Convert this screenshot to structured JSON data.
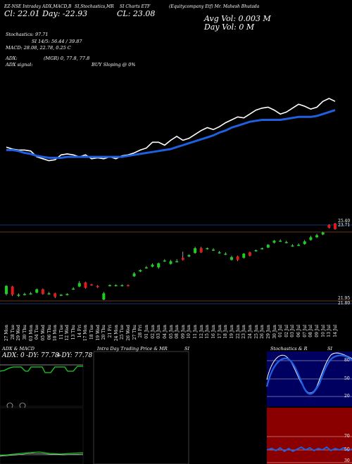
{
  "header": {
    "line1_left": "EZ-NSE",
    "line1_a": "Intraday AD",
    "line1_b": "X,MACD,B",
    "line1_c": "SI,Stochastics,MR",
    "line1_d": "SI Charts ETF",
    "line1_e": "(Equitycompany Etf) Mr. Mahesh Bhutada ",
    "line2_a": "Cl: 22.01 Day: -22.93",
    "line2_b": "CL: 23.08",
    "avg_vol": "Avg Vol: 0.003 M",
    "day_vol": "Day Vol: 0   M",
    "stoch": "Stochastics: 97.71",
    "si": "SI 14/5: 56.44   / 39.87",
    "macd": "MACD: 28.08, 22.78, 0.25 C",
    "adx": "ADX:",
    "adx_mgr": "(MGR) 0, 77.8, 77.8",
    "adx_signal": "ADX  signal:",
    "buy_signal": "BUY Sloping @ 0%"
  },
  "price_axis": {
    "top_label": "25.40",
    "top_label2": "23.71",
    "bottom_label": "21.95",
    "bottom_label2": "21.80"
  },
  "dates": [
    "27 Mon",
    "28 Tue",
    "29 Wed",
    "30 Thu",
    "03 Mon",
    "04 Tue",
    "05 Wed",
    "06 Thu",
    "10 Mon",
    "11 Tue",
    "12 Wed",
    "13 Thu",
    "14 Fri",
    "17 Mon",
    "18 Tue",
    "19 Wed",
    "20 Thu",
    "21 Fri",
    "24 Mon",
    "25 Tue",
    "26 Wed",
    "27 Thu",
    "28 Fri",
    "01 Jun",
    "02 Jun",
    "03 Jun",
    "04 Jun",
    "05 Jun",
    "08 Jun",
    "09 Jun",
    "10 Jun",
    "11 Jun",
    "12 Jun",
    "15 Jun",
    "16 Jun",
    "17 Jun",
    "18 Jun",
    "19 Jun",
    "22 Jun",
    "23 Jun",
    "24 Jun",
    "25 Jun",
    "26 Jun",
    "29 Jun",
    "30 Jun",
    "01 Jul",
    "02 Jul",
    "03 Jul",
    "06 Jul",
    "07 Jul",
    "08 Jul",
    "09 Jul",
    "10 Jul",
    "13 Jul",
    "14 Jul"
  ],
  "panels": {
    "adx_title": "ADX  & MACD",
    "adx_readout_a": "ADX: 0",
    "adx_readout_b": "-DY: 77.78",
    "adx_readout_c": "+DY: 77.78",
    "intraday_title": "Intra  Day Trading Price  & MR",
    "intraday_si": "SI",
    "stoch_title": "Stochastics & R",
    "stoch_si": "SI",
    "stoch_levels": [
      "80",
      "50",
      "20"
    ],
    "rsi_levels": [
      "70",
      "50",
      "30"
    ]
  },
  "colors": {
    "up": "#16d21e",
    "down": "#e01a1a",
    "ma": "#1f5fe0",
    "stoch_bg": "#000060",
    "rsi_bg": "#8a0000",
    "level_line": "#8a4a1a"
  },
  "chart_data": {
    "type": "candlestick",
    "x": [
      "27 Mon",
      "28 Tue",
      "29 Wed",
      "30 Thu",
      "03 Mon",
      "04 Tue",
      "05 Wed",
      "06 Thu",
      "10 Mon",
      "11 Tue",
      "12 Wed",
      "13 Thu",
      "14 Fri",
      "17 Mon",
      "18 Tue",
      "19 Wed",
      "20 Thu",
      "21 Fri",
      "24 Mon",
      "25 Tue",
      "26 Wed",
      "27 Thu",
      "28 Fri",
      "01 Jun",
      "02 Jun",
      "03 Jun",
      "04 Jun",
      "05 Jun",
      "08 Jun",
      "09 Jun",
      "10 Jun",
      "11 Jun",
      "12 Jun",
      "15 Jun",
      "16 Jun",
      "17 Jun",
      "18 Jun",
      "19 Jun",
      "22 Jun",
      "23 Jun",
      "24 Jun",
      "25 Jun",
      "26 Jun",
      "29 Jun",
      "30 Jun",
      "01 Jul",
      "02 Jul",
      "03 Jul",
      "06 Jul",
      "07 Jul",
      "08 Jul",
      "09 Jul",
      "10 Jul",
      "13 Jul",
      "14 Jul"
    ],
    "candles": [
      {
        "o": 22.05,
        "c": 22.17,
        "h": 22.18,
        "l": 22.03,
        "up": true
      },
      {
        "o": 22.16,
        "c": 22.04,
        "h": 22.17,
        "l": 22.02,
        "up": false
      },
      {
        "o": 22.03,
        "c": 22.04,
        "h": 22.06,
        "l": 22.01,
        "up": true
      },
      {
        "o": 22.04,
        "c": 22.05,
        "h": 22.07,
        "l": 22.03,
        "up": true
      },
      {
        "o": 22.05,
        "c": 22.06,
        "h": 22.08,
        "l": 22.04,
        "up": true
      },
      {
        "o": 22.07,
        "c": 22.12,
        "h": 22.13,
        "l": 22.06,
        "up": true
      },
      {
        "o": 22.12,
        "c": 22.05,
        "h": 22.13,
        "l": 22.04,
        "up": false
      },
      {
        "o": 22.05,
        "c": 22.06,
        "h": 22.08,
        "l": 22.04,
        "up": true
      },
      {
        "o": 22.06,
        "c": 22.01,
        "h": 22.07,
        "l": 21.99,
        "up": false
      },
      {
        "o": 22.03,
        "c": 22.04,
        "h": 22.05,
        "l": 22.02,
        "up": true
      },
      {
        "o": 22.04,
        "c": 22.05,
        "h": 22.06,
        "l": 22.03,
        "up": true
      },
      {
        "o": 22.12,
        "c": 22.13,
        "h": 22.15,
        "l": 22.11,
        "up": true
      },
      {
        "o": 22.16,
        "c": 22.21,
        "h": 22.24,
        "l": 22.15,
        "up": true
      },
      {
        "o": 22.22,
        "c": 22.14,
        "h": 22.23,
        "l": 22.13,
        "up": false
      },
      {
        "o": 22.19,
        "c": 22.18,
        "h": 22.2,
        "l": 22.17,
        "up": false
      },
      {
        "o": 22.17,
        "c": 22.15,
        "h": 22.18,
        "l": 22.14,
        "up": false
      },
      {
        "o": 21.97,
        "c": 22.06,
        "h": 22.08,
        "l": 21.96,
        "up": true
      },
      {
        "o": 22.17,
        "c": 22.18,
        "h": 22.19,
        "l": 22.16,
        "up": true
      },
      {
        "o": 22.17,
        "c": 22.18,
        "h": 22.19,
        "l": 22.16,
        "up": true
      },
      {
        "o": 22.17,
        "c": 22.18,
        "h": 22.19,
        "l": 22.16,
        "up": true
      },
      {
        "o": 22.18,
        "c": 22.17,
        "h": 22.19,
        "l": 22.16,
        "up": false
      },
      {
        "o": 22.31,
        "c": 22.35,
        "h": 22.37,
        "l": 22.3,
        "up": true
      },
      {
        "o": 22.38,
        "c": 22.4,
        "h": 22.41,
        "l": 22.37,
        "up": true
      },
      {
        "o": 22.43,
        "c": 22.44,
        "h": 22.46,
        "l": 22.42,
        "up": true
      },
      {
        "o": 22.45,
        "c": 22.48,
        "h": 22.5,
        "l": 22.44,
        "up": true
      },
      {
        "o": 22.44,
        "c": 22.5,
        "h": 22.51,
        "l": 22.42,
        "up": true
      },
      {
        "o": 22.53,
        "c": 22.54,
        "h": 22.56,
        "l": 22.52,
        "up": true
      },
      {
        "o": 22.49,
        "c": 22.53,
        "h": 22.55,
        "l": 22.48,
        "up": true
      },
      {
        "o": 22.52,
        "c": 22.53,
        "h": 22.56,
        "l": 22.51,
        "up": true
      },
      {
        "o": 22.58,
        "c": 22.55,
        "h": 22.67,
        "l": 22.54,
        "up": false
      },
      {
        "o": 22.6,
        "c": 22.62,
        "h": 22.63,
        "l": 22.59,
        "up": true
      },
      {
        "o": 22.65,
        "c": 22.72,
        "h": 22.74,
        "l": 22.64,
        "up": true
      },
      {
        "o": 22.72,
        "c": 22.66,
        "h": 22.74,
        "l": 22.65,
        "up": false
      },
      {
        "o": 22.71,
        "c": 22.72,
        "h": 22.73,
        "l": 22.7,
        "up": true
      },
      {
        "o": 22.69,
        "c": 22.7,
        "h": 22.72,
        "l": 22.68,
        "up": true
      },
      {
        "o": 22.65,
        "c": 22.66,
        "h": 22.68,
        "l": 22.64,
        "up": true
      },
      {
        "o": 22.63,
        "c": 22.64,
        "h": 22.66,
        "l": 22.62,
        "up": true
      },
      {
        "o": 22.55,
        "c": 22.59,
        "h": 22.61,
        "l": 22.54,
        "up": true
      },
      {
        "o": 22.6,
        "c": 22.55,
        "h": 22.61,
        "l": 22.53,
        "up": false
      },
      {
        "o": 22.58,
        "c": 22.64,
        "h": 22.65,
        "l": 22.57,
        "up": true
      },
      {
        "o": 22.66,
        "c": 22.61,
        "h": 22.67,
        "l": 22.6,
        "up": false
      },
      {
        "o": 22.68,
        "c": 22.69,
        "h": 22.7,
        "l": 22.67,
        "up": true
      },
      {
        "o": 22.71,
        "c": 22.72,
        "h": 22.73,
        "l": 22.7,
        "up": true
      },
      {
        "o": 22.73,
        "c": 22.77,
        "h": 22.78,
        "l": 22.72,
        "up": true
      },
      {
        "o": 22.8,
        "c": 22.83,
        "h": 22.84,
        "l": 22.79,
        "up": true
      },
      {
        "o": 22.82,
        "c": 22.83,
        "h": 22.85,
        "l": 22.81,
        "up": true
      },
      {
        "o": 22.8,
        "c": 22.81,
        "h": 22.83,
        "l": 22.79,
        "up": true
      },
      {
        "o": 22.75,
        "c": 22.76,
        "h": 22.78,
        "l": 22.74,
        "up": true
      },
      {
        "o": 22.76,
        "c": 22.77,
        "h": 22.79,
        "l": 22.75,
        "up": true
      },
      {
        "o": 22.78,
        "c": 22.82,
        "h": 22.84,
        "l": 22.77,
        "up": true
      },
      {
        "o": 22.84,
        "c": 22.88,
        "h": 22.9,
        "l": 22.83,
        "up": true
      },
      {
        "o": 22.88,
        "c": 22.91,
        "h": 22.93,
        "l": 22.87,
        "up": true
      },
      {
        "o": 22.92,
        "c": 22.95,
        "h": 22.96,
        "l": 22.91,
        "up": true
      },
      {
        "o": 23.06,
        "c": 23.02,
        "h": 23.07,
        "l": 23.01,
        "up": false
      },
      {
        "o": 23.08,
        "c": 23.0,
        "h": 23.09,
        "l": 22.99,
        "up": false
      }
    ],
    "price_line": [
      23.0,
      22.98,
      22.97,
      22.97,
      22.96,
      22.9,
      22.88,
      22.86,
      22.87,
      22.92,
      22.93,
      22.92,
      22.9,
      22.92,
      22.88,
      22.89,
      22.88,
      22.9,
      22.88,
      22.91,
      22.92,
      22.94,
      22.97,
      22.99,
      23.05,
      23.05,
      23.02,
      23.07,
      23.11,
      23.07,
      23.09,
      23.13,
      23.17,
      23.2,
      23.18,
      23.21,
      23.25,
      23.28,
      23.31,
      23.3,
      23.34,
      23.38,
      23.4,
      23.41,
      23.38,
      23.34,
      23.36,
      23.4,
      23.44,
      23.42,
      23.39,
      23.41,
      23.47,
      23.5,
      23.47
    ],
    "ma_line": [
      22.97,
      22.97,
      22.96,
      22.94,
      22.93,
      22.91,
      22.9,
      22.89,
      22.89,
      22.89,
      22.9,
      22.9,
      22.9,
      22.9,
      22.9,
      22.9,
      22.9,
      22.9,
      22.9,
      22.9,
      22.91,
      22.92,
      22.93,
      22.94,
      22.95,
      22.96,
      22.97,
      22.98,
      23.0,
      23.02,
      23.04,
      23.06,
      23.08,
      23.1,
      23.12,
      23.15,
      23.17,
      23.2,
      23.22,
      23.24,
      23.26,
      23.27,
      23.28,
      23.28,
      23.28,
      23.28,
      23.29,
      23.3,
      23.31,
      23.31,
      23.31,
      23.32,
      23.34,
      23.36,
      23.38
    ],
    "ylim": [
      21.95,
      23.71
    ]
  }
}
